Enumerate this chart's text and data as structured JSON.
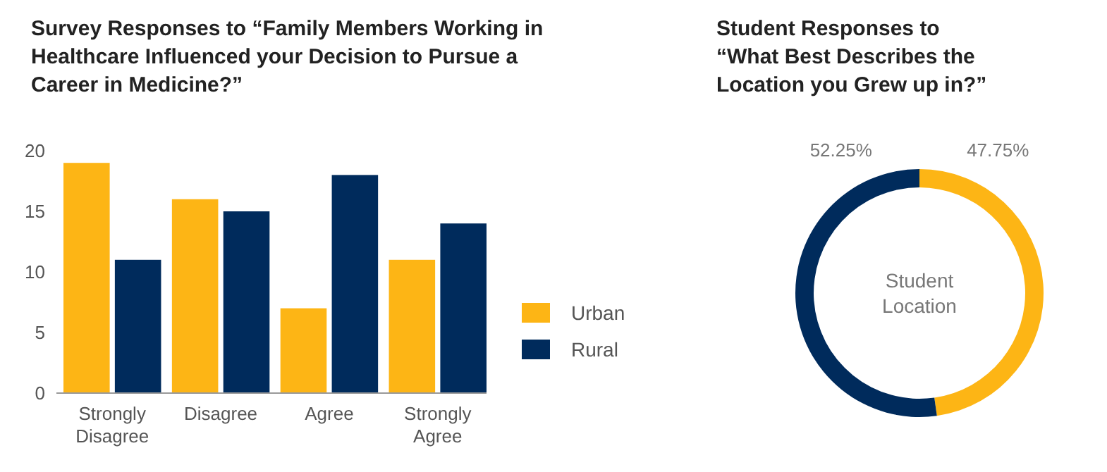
{
  "chart_data": [
    {
      "type": "bar",
      "title": "Survey Responses to “Family Members Working in Healthcare Influenced your Decision to Pursue a Career in Medicine?”",
      "categories": [
        "Strongly Disagree",
        "Disagree",
        "Agree",
        "Strongly Agree"
      ],
      "series": [
        {
          "name": "Urban",
          "color": "#fdb515",
          "values": [
            19,
            16,
            7,
            11
          ]
        },
        {
          "name": "Rural",
          "color": "#002b5c",
          "values": [
            11,
            15,
            18,
            14
          ]
        }
      ],
      "ylim": [
        0,
        20
      ],
      "yticks": [
        0,
        5,
        10,
        15,
        20
      ],
      "grid": false,
      "legend": "right"
    },
    {
      "type": "donut",
      "title": "Student Responses to “What Best Describes the Location you Grew up in?”",
      "categories": [
        null,
        null
      ],
      "values": [
        47.75,
        52.25
      ],
      "colors": [
        "#fdb515",
        "#002b5c"
      ],
      "value_labels": [
        "47.75%",
        "52.25%"
      ],
      "annotations": [
        "Student Location"
      ]
    }
  ]
}
